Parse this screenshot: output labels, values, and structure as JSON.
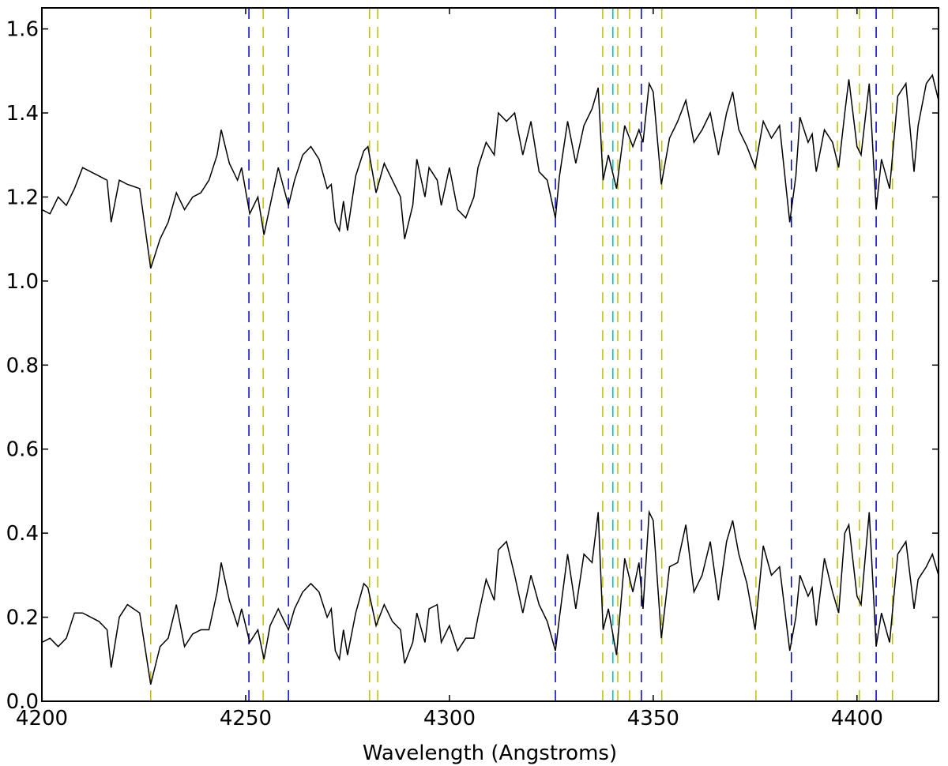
{
  "chart_data": {
    "type": "line",
    "xlabel": "Wavelength (Angstroms)",
    "xlim": [
      4200,
      4420
    ],
    "ylim": [
      0,
      1.65
    ],
    "xticks": [
      4200,
      4250,
      4300,
      4350,
      4400
    ],
    "yticks": [
      {
        "value": 0,
        "label": "0.0"
      },
      0.2,
      0.4,
      0.6,
      0.8,
      {
        "value": 1,
        "label": "1.0"
      },
      1.2,
      1.4,
      1.6
    ],
    "x": [
      4200,
      4202,
      4204,
      4206,
      4208,
      4210,
      4212,
      4214,
      4216,
      4217,
      4219,
      4221,
      4224,
      4226.7,
      4229,
      4231,
      4233,
      4235,
      4237,
      4239,
      4241,
      4243,
      4244,
      4246,
      4248,
      4249,
      4251,
      4253,
      4254.5,
      4256,
      4258,
      4260.5,
      4262,
      4264,
      4266,
      4268,
      4270,
      4271,
      4272,
      4273,
      4274,
      4275,
      4277,
      4279,
      4280,
      4282,
      4284,
      4286,
      4288,
      4289,
      4291,
      4292,
      4294,
      4295,
      4297,
      4298,
      4300,
      4302,
      4304,
      4306,
      4307,
      4309,
      4311,
      4312,
      4314,
      4316,
      4318,
      4320,
      4322,
      4324,
      4326,
      4327,
      4329,
      4331,
      4333,
      4335,
      4336.5,
      4337.7,
      4339,
      4341,
      4343,
      4345,
      4346.5,
      4347.5,
      4349,
      4350,
      4352,
      4354,
      4356,
      4358,
      4360,
      4362,
      4364,
      4366,
      4368,
      4369.5,
      4371,
      4373,
      4375,
      4377,
      4379,
      4381,
      4383.5,
      4385,
      4386,
      4388,
      4389,
      4390,
      4392,
      4394,
      4395.5,
      4397,
      4398,
      4400,
      4401,
      4403,
      4404.7,
      4406,
      4408,
      4410,
      4412,
      4414,
      4415,
      4417,
      4418.5,
      4420
    ],
    "series": [
      {
        "color": "#000000",
        "values": [
          1.17,
          1.16,
          1.2,
          1.18,
          1.22,
          1.27,
          1.26,
          1.25,
          1.24,
          1.14,
          1.24,
          1.23,
          1.22,
          1.03,
          1.1,
          1.14,
          1.21,
          1.17,
          1.2,
          1.21,
          1.24,
          1.3,
          1.36,
          1.28,
          1.24,
          1.27,
          1.16,
          1.2,
          1.11,
          1.18,
          1.27,
          1.18,
          1.24,
          1.3,
          1.32,
          1.29,
          1.22,
          1.23,
          1.14,
          1.12,
          1.19,
          1.12,
          1.25,
          1.31,
          1.32,
          1.21,
          1.28,
          1.24,
          1.2,
          1.1,
          1.18,
          1.29,
          1.2,
          1.27,
          1.24,
          1.18,
          1.27,
          1.17,
          1.15,
          1.2,
          1.27,
          1.33,
          1.3,
          1.4,
          1.38,
          1.4,
          1.3,
          1.38,
          1.26,
          1.24,
          1.15,
          1.25,
          1.38,
          1.28,
          1.37,
          1.41,
          1.46,
          1.24,
          1.3,
          1.22,
          1.37,
          1.32,
          1.36,
          1.33,
          1.47,
          1.45,
          1.23,
          1.34,
          1.38,
          1.43,
          1.33,
          1.36,
          1.4,
          1.3,
          1.4,
          1.45,
          1.36,
          1.32,
          1.27,
          1.38,
          1.34,
          1.37,
          1.14,
          1.25,
          1.39,
          1.33,
          1.35,
          1.26,
          1.36,
          1.33,
          1.27,
          1.4,
          1.48,
          1.32,
          1.3,
          1.47,
          1.17,
          1.29,
          1.22,
          1.44,
          1.47,
          1.26,
          1.37,
          1.47,
          1.49,
          1.43
        ]
      },
      {
        "color": "#000000",
        "values": [
          0.14,
          0.15,
          0.13,
          0.15,
          0.21,
          0.21,
          0.2,
          0.19,
          0.17,
          0.08,
          0.2,
          0.23,
          0.21,
          0.04,
          0.13,
          0.15,
          0.23,
          0.13,
          0.16,
          0.17,
          0.17,
          0.26,
          0.33,
          0.24,
          0.18,
          0.22,
          0.14,
          0.17,
          0.1,
          0.18,
          0.22,
          0.17,
          0.22,
          0.26,
          0.28,
          0.26,
          0.2,
          0.22,
          0.12,
          0.1,
          0.17,
          0.11,
          0.21,
          0.28,
          0.27,
          0.18,
          0.23,
          0.19,
          0.17,
          0.09,
          0.14,
          0.21,
          0.14,
          0.22,
          0.23,
          0.14,
          0.18,
          0.12,
          0.15,
          0.15,
          0.2,
          0.29,
          0.24,
          0.36,
          0.38,
          0.3,
          0.21,
          0.3,
          0.23,
          0.19,
          0.12,
          0.2,
          0.35,
          0.22,
          0.35,
          0.33,
          0.45,
          0.17,
          0.22,
          0.11,
          0.34,
          0.26,
          0.33,
          0.22,
          0.45,
          0.43,
          0.15,
          0.32,
          0.33,
          0.42,
          0.26,
          0.3,
          0.38,
          0.24,
          0.38,
          0.43,
          0.35,
          0.28,
          0.17,
          0.37,
          0.3,
          0.32,
          0.12,
          0.2,
          0.3,
          0.25,
          0.27,
          0.18,
          0.34,
          0.26,
          0.21,
          0.4,
          0.42,
          0.25,
          0.23,
          0.45,
          0.13,
          0.21,
          0.14,
          0.35,
          0.38,
          0.22,
          0.29,
          0.32,
          0.35,
          0.3
        ]
      }
    ],
    "vlines": [
      {
        "color": "#bfbf00",
        "x": [
          4226.7,
          4254.3,
          4280.4,
          4282.4,
          4337.6,
          4341.3,
          4344.2,
          4352.1,
          4375.2,
          4395.2,
          4400.6,
          4408.7
        ]
      },
      {
        "color": "#0000bf",
        "x": [
          4250.8,
          4260.5,
          4326.0,
          4347.1,
          4383.9,
          4404.7
        ]
      },
      {
        "color": "#00bfbf",
        "x": [
          4340.1
        ]
      }
    ]
  }
}
